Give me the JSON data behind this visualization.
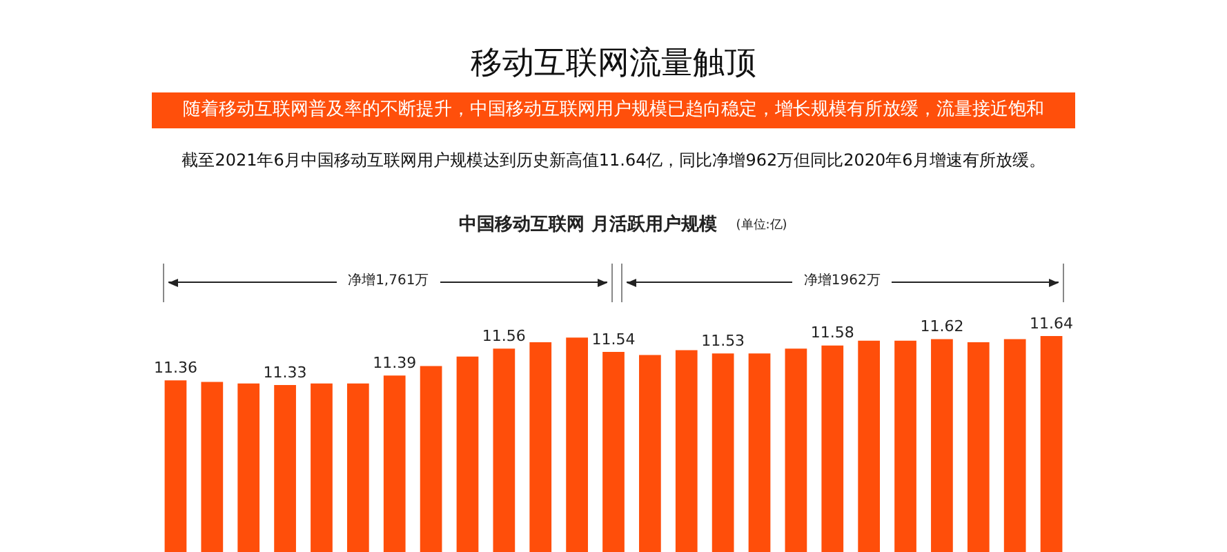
{
  "chart_data": {
    "type": "bar",
    "title": "移动互联网流量触顶",
    "subtitle": "随着移动互联网普及率的不断提升，中国移动互联网用户规模已趋向稳定，增长规模有所放缓，流量接近饱和",
    "annotations": [
      "截至2021年6月中国移动互联网用户规模达到历史新高值11.64亿，同比净增962万但同比2020年6月增速有所放缓。",
      "中国移动互联网 月活跃用户规模",
      "(单位:亿)",
      "净增1,761万",
      "净增1962万"
    ],
    "categories": [
      null,
      null,
      null,
      null,
      null,
      null,
      null,
      null,
      null,
      null,
      null,
      null,
      null,
      null,
      null,
      null,
      null,
      null,
      null,
      null,
      null,
      null,
      null,
      null,
      null
    ],
    "values": [
      11.36,
      11.35,
      11.34,
      11.33,
      11.34,
      11.34,
      11.39,
      11.45,
      11.51,
      11.56,
      11.6,
      11.63,
      11.54,
      11.52,
      11.55,
      11.53,
      11.53,
      11.56,
      11.58,
      11.61,
      11.61,
      11.62,
      11.6,
      11.62,
      11.64
    ],
    "value_labels": [
      "11.36",
      null,
      null,
      "11.33",
      null,
      null,
      "11.39",
      null,
      null,
      "11.56",
      null,
      null,
      "11.54",
      null,
      null,
      "11.53",
      null,
      null,
      "11.58",
      null,
      null,
      "11.62",
      null,
      null,
      "11.64"
    ],
    "color": "#ff4e0a",
    "legend": false
  }
}
